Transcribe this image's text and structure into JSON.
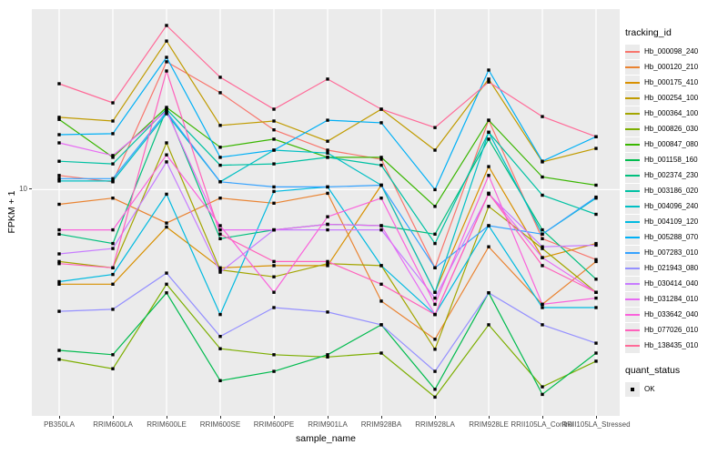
{
  "colors": {
    "panel_bg": "#EBEBEB",
    "grid": "#FFFFFF",
    "tick_text": "#4D4D4D",
    "axis_text": "#000000",
    "point": "#000000"
  },
  "chart_data": {
    "type": "line",
    "title": "",
    "xlabel": "sample_name",
    "ylabel": "FPKM + 1",
    "y_scale": "log10",
    "y_tick_label": "10",
    "y_tick_value": 10,
    "ylim": [
      0.85,
      74
    ],
    "grid": "major",
    "legend_position": "right",
    "point": {
      "shape": "square",
      "color": "#000000"
    },
    "legend": {
      "color_title": "tracking_id",
      "shape_title": "quant_status",
      "shape_item_label": "OK"
    },
    "categories": [
      "PB350LA",
      "RRIM600LA",
      "RRIM600LE",
      "RRIM600SE",
      "RRIM600PE",
      "RRIM901LA",
      "RRIM928BA",
      "RRIM928LA",
      "RRIM928LE",
      "RRII105LA_Control",
      "RRII105LA_Stressed"
    ],
    "series": [
      {
        "name": "Hb_000098_240",
        "color": "#F8766D",
        "values": [
          11.7,
          10.9,
          41.3,
          29.3,
          19.4,
          15.5,
          14.0,
          4.2,
          21.6,
          5.8,
          4.6
        ]
      },
      {
        "name": "Hb_000120_210",
        "color": "#EA8331",
        "values": [
          8.5,
          9.1,
          6.9,
          9.1,
          8.6,
          9.6,
          2.9,
          1.9,
          5.3,
          2.8,
          4.5
        ]
      },
      {
        "name": "Hb_000175_410",
        "color": "#D89000",
        "values": [
          3.5,
          3.5,
          6.6,
          4.2,
          4.3,
          4.3,
          10.5,
          3.2,
          12.9,
          4.7,
          5.5
        ]
      },
      {
        "name": "Hb_000254_100",
        "color": "#C09B00",
        "values": [
          22.3,
          21.4,
          52.0,
          20.4,
          21.4,
          17.1,
          24.4,
          15.5,
          34.1,
          13.6,
          15.8
        ]
      },
      {
        "name": "Hb_000364_100",
        "color": "#A3A500",
        "values": [
          4.5,
          4.2,
          16.8,
          4.1,
          3.8,
          4.4,
          4.3,
          1.7,
          8.3,
          5.2,
          3.2
        ]
      },
      {
        "name": "Hb_000826_030",
        "color": "#7CAE00",
        "values": [
          1.52,
          1.37,
          3.5,
          1.71,
          1.6,
          1.56,
          1.63,
          1.0,
          2.23,
          1.12,
          1.49
        ]
      },
      {
        "name": "Hb_000847_080",
        "color": "#39B600",
        "values": [
          21.8,
          14.3,
          24.9,
          16.0,
          17.5,
          14.3,
          14.3,
          8.3,
          21.6,
          11.5,
          10.5
        ]
      },
      {
        "name": "Hb_001158_160",
        "color": "#00BB4E",
        "values": [
          1.68,
          1.6,
          3.18,
          1.2,
          1.33,
          1.6,
          2.23,
          1.09,
          3.18,
          1.03,
          1.63
        ]
      },
      {
        "name": "Hb_002374_230",
        "color": "#00BF7D",
        "values": [
          6.1,
          5.5,
          24.4,
          5.8,
          6.4,
          6.8,
          6.7,
          6.1,
          17.5,
          6.4,
          3.7
        ]
      },
      {
        "name": "Hb_003186_020",
        "color": "#00C1A3",
        "values": [
          13.7,
          13.3,
          24.4,
          13.1,
          13.3,
          14.3,
          13.1,
          5.5,
          18.9,
          9.4,
          7.6
        ]
      },
      {
        "name": "Hb_004096_240",
        "color": "#00BFC4",
        "values": [
          11.0,
          11.0,
          23.2,
          10.9,
          15.5,
          15.0,
          10.5,
          3.2,
          18.9,
          6.1,
          9.1
        ]
      },
      {
        "name": "Hb_004109_120",
        "color": "#00BAE0",
        "values": [
          3.6,
          3.9,
          9.5,
          2.5,
          9.8,
          10.3,
          4.3,
          2.5,
          6.7,
          2.7,
          2.7
        ]
      },
      {
        "name": "Hb_005288_070",
        "color": "#00B0F6",
        "values": [
          18.4,
          18.6,
          43.4,
          14.3,
          15.5,
          21.6,
          21.0,
          10.0,
          37.7,
          13.7,
          18.0
        ]
      },
      {
        "name": "Hb_007283_010",
        "color": "#35A2FF",
        "values": [
          11.3,
          11.3,
          23.7,
          10.9,
          10.3,
          10.3,
          10.5,
          4.2,
          6.7,
          6.1,
          9.2
        ]
      },
      {
        "name": "Hb_021943_080",
        "color": "#9590FF",
        "values": [
          2.59,
          2.65,
          3.96,
          1.96,
          2.7,
          2.57,
          2.23,
          1.33,
          3.18,
          2.23,
          1.82
        ]
      },
      {
        "name": "Hb_030414_040",
        "color": "#C77CFF",
        "values": [
          4.9,
          5.2,
          13.6,
          4.0,
          6.4,
          6.4,
          6.4,
          3.0,
          9.5,
          5.3,
          5.4
        ]
      },
      {
        "name": "Hb_031284_010",
        "color": "#E76BF3",
        "values": [
          16.8,
          14.6,
          23.9,
          6.4,
          6.4,
          6.8,
          6.7,
          2.5,
          9.6,
          4.7,
          3.2
        ]
      },
      {
        "name": "Hb_033642_040",
        "color": "#FA62DB",
        "values": [
          6.4,
          6.4,
          14.7,
          6.7,
          3.2,
          7.4,
          9.1,
          2.8,
          11.7,
          2.8,
          3.0
        ]
      },
      {
        "name": "Hb_077026_010",
        "color": "#FF62BC",
        "values": [
          4.4,
          4.2,
          37.3,
          6.1,
          4.5,
          4.5,
          3.5,
          2.5,
          9.6,
          4.3,
          3.2
        ]
      },
      {
        "name": "Hb_138435_010",
        "color": "#FF6A98",
        "values": [
          32.4,
          26.2,
          61.8,
          34.8,
          24.4,
          34.1,
          24.4,
          19.9,
          33.0,
          22.5,
          18.0
        ]
      }
    ]
  }
}
